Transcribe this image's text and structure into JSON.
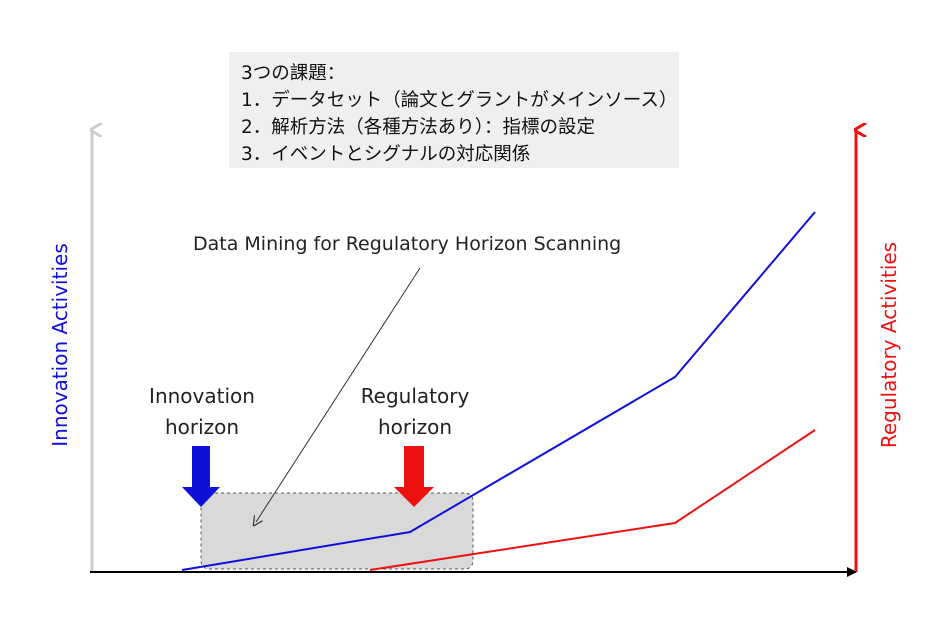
{
  "notes": {
    "title": "3つの課題：",
    "items": [
      "1．データセット（論文とグラントがメインソース）",
      "2．解析方法（各種方法あり）：指標の設定",
      "3．イベントとシグナルの対応関係"
    ]
  },
  "diagram": {
    "title": "Data Mining for Regulatory Horizon Scanning",
    "left_axis_label": "Innovation Activities",
    "right_axis_label": "Regulatory Activities",
    "innovation_horizon": [
      "Innovation",
      "horizon"
    ],
    "regulatory_horizon": [
      "Regulatory",
      "horizon"
    ]
  },
  "colors": {
    "innovation": "#1010d8",
    "regulatory": "#ee1111",
    "left_axis": "#cccccc",
    "x_axis": "#000000",
    "box_fill": "#d9d9d9"
  }
}
